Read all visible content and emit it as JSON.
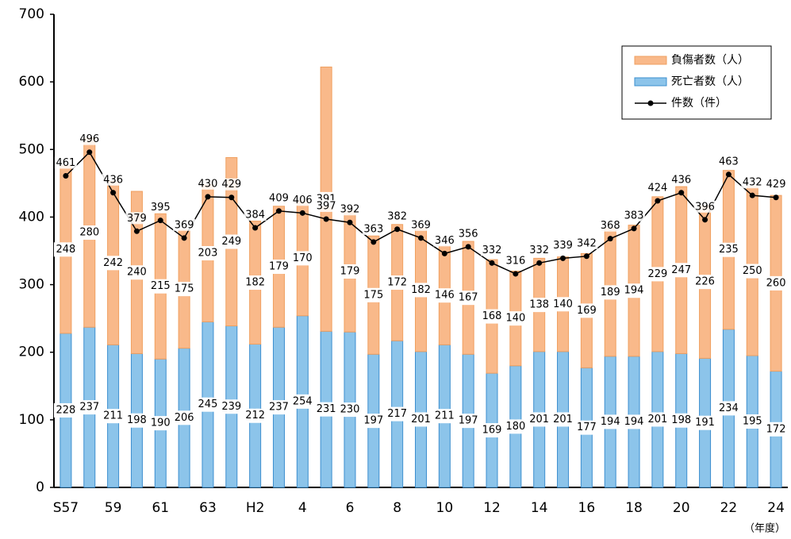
{
  "chart_data": {
    "type": "bar",
    "stacked": true,
    "x_label": "（年度）",
    "categories": [
      "S57",
      null,
      "59",
      null,
      "61",
      null,
      "63",
      null,
      "H2",
      null,
      "4",
      null,
      "6",
      null,
      "8",
      null,
      "10",
      null,
      "12",
      null,
      "14",
      null,
      "16",
      null,
      "18",
      null,
      "20",
      null,
      "22",
      null,
      "24"
    ],
    "series": [
      {
        "name": "負傷者数（人）",
        "type": "bar",
        "color": "#f9b98a",
        "stack_order": 1,
        "values": [
          248,
          280,
          242,
          240,
          215,
          175,
          203,
          249,
          182,
          179,
          170,
          391,
          179,
          175,
          172,
          182,
          146,
          167,
          168,
          140,
          138,
          140,
          169,
          189,
          194,
          229,
          247,
          226,
          235,
          250,
          260
        ]
      },
      {
        "name": "死亡者数（人）",
        "type": "bar",
        "color": "#8cc4ea",
        "stack_order": 0,
        "values": [
          228,
          237,
          211,
          198,
          190,
          206,
          245,
          239,
          212,
          237,
          254,
          231,
          230,
          197,
          217,
          201,
          211,
          197,
          169,
          180,
          201,
          201,
          177,
          194,
          194,
          201,
          198,
          191,
          234,
          195,
          172
        ]
      },
      {
        "name": "件数（件）",
        "type": "line",
        "color": "#000000",
        "values": [
          461,
          496,
          436,
          379,
          395,
          369,
          430,
          429,
          384,
          409,
          406,
          397,
          392,
          363,
          382,
          369,
          346,
          356,
          332,
          316,
          332,
          339,
          342,
          368,
          383,
          424,
          436,
          396,
          463,
          432,
          429
        ]
      }
    ],
    "ylim": [
      0,
      700
    ],
    "yticks": [
      0,
      100,
      200,
      300,
      400,
      500,
      600,
      700
    ],
    "grid": false,
    "legend": "upper right"
  }
}
